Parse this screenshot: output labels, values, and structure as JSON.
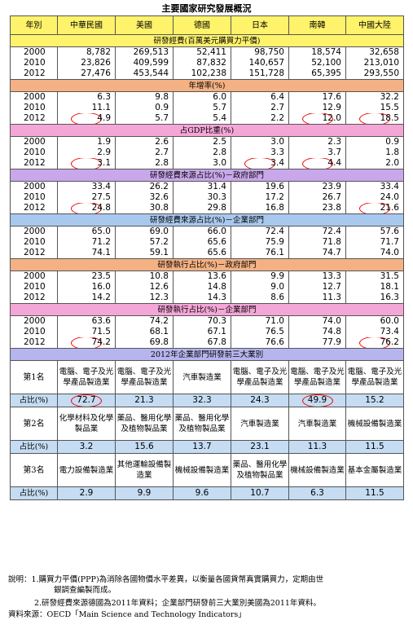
{
  "title": "主要國家研究發展概況",
  "headers": [
    "年別",
    "中華民國",
    "美國",
    "德國",
    "日本",
    "南韓",
    "中國大陸"
  ],
  "sections": [
    {
      "label": "研發經費(百萬美元購買力平價)",
      "color": "yellow",
      "rows": [
        {
          "year": "2000",
          "values": [
            "8,782",
            "269,513",
            "52,411",
            "98,750",
            "18,574",
            "32,658"
          ]
        },
        {
          "year": "2010",
          "values": [
            "23,826",
            "409,599",
            "87,832",
            "140,657",
            "52,100",
            "213,010"
          ]
        },
        {
          "year": "2012",
          "values": [
            "27,476",
            "453,544",
            "102,238",
            "151,728",
            "65,395",
            "293,550"
          ]
        }
      ]
    },
    {
      "label": "年增率(%)",
      "color": "orange",
      "rows": [
        {
          "year": "2000",
          "values": [
            "6.3",
            "9.8",
            "6.0",
            "6.4",
            "17.6",
            "32.2"
          ]
        },
        {
          "year": "2010",
          "values": [
            "11.1",
            "0.9",
            "5.7",
            "2.7",
            "12.9",
            "15.5"
          ]
        },
        {
          "year": "2012",
          "values": [
            "4.9",
            "5.7",
            "5.4",
            "2.2",
            "12.0",
            "18.5"
          ]
        }
      ]
    },
    {
      "label": "占GDP比重(%)",
      "color": "pink",
      "rows": [
        {
          "year": "2000",
          "values": [
            "1.9",
            "2.6",
            "2.5",
            "3.0",
            "2.3",
            "0.9"
          ]
        },
        {
          "year": "2010",
          "values": [
            "2.9",
            "2.7",
            "2.8",
            "3.3",
            "3.7",
            "1.8"
          ]
        },
        {
          "year": "2012",
          "values": [
            "3.1",
            "2.8",
            "3.0",
            "3.4",
            "4.4",
            "2.0"
          ]
        }
      ]
    },
    {
      "label": "研發經費來源占比(%)－政府部門",
      "color": "purple",
      "rows": [
        {
          "year": "2000",
          "values": [
            "33.4",
            "26.2",
            "31.4",
            "19.6",
            "23.9",
            "33.4"
          ]
        },
        {
          "year": "2010",
          "values": [
            "27.5",
            "32.6",
            "30.3",
            "17.2",
            "26.7",
            "24.0"
          ]
        },
        {
          "year": "2012",
          "values": [
            "24.8",
            "30.8",
            "29.8",
            "16.8",
            "23.8",
            "21.6"
          ]
        }
      ]
    },
    {
      "label": "研發經費來源占比(%)－企業部門",
      "color": "blue",
      "rows": [
        {
          "year": "2000",
          "values": [
            "65.0",
            "69.0",
            "66.0",
            "72.4",
            "72.4",
            "57.6"
          ]
        },
        {
          "year": "2010",
          "values": [
            "71.2",
            "57.2",
            "65.6",
            "75.9",
            "71.8",
            "71.7"
          ]
        },
        {
          "year": "2012",
          "values": [
            "74.1",
            "59.1",
            "65.6",
            "76.1",
            "74.7",
            "74.0"
          ]
        }
      ]
    },
    {
      "label": "研發執行占比(%)－政府部門",
      "color": "orange",
      "rows": [
        {
          "year": "2000",
          "values": [
            "23.5",
            "10.8",
            "13.6",
            "9.9",
            "13.3",
            "31.5"
          ]
        },
        {
          "year": "2010",
          "values": [
            "16.0",
            "12.6",
            "14.8",
            "9.0",
            "12.7",
            "18.1"
          ]
        },
        {
          "year": "2012",
          "values": [
            "14.2",
            "12.3",
            "14.3",
            "8.6",
            "11.3",
            "16.3"
          ]
        }
      ]
    },
    {
      "label": "研發執行占比(%)－企業部門",
      "color": "pink",
      "rows": [
        {
          "year": "2000",
          "values": [
            "63.6",
            "74.2",
            "70.3",
            "71.0",
            "74.0",
            "60.0"
          ]
        },
        {
          "year": "2010",
          "values": [
            "71.5",
            "68.1",
            "67.1",
            "76.5",
            "74.8",
            "73.4"
          ]
        },
        {
          "year": "2012",
          "values": [
            "74.2",
            "69.8",
            "67.8",
            "76.6",
            "77.9",
            "76.2"
          ]
        }
      ]
    }
  ],
  "industry": {
    "label": "2012年企業部門研發前三大業別",
    "ranks": [
      {
        "rank": "第1名",
        "industries": [
          "電腦、電子及光學產品製造業",
          "電腦、電子及光學產品製造業",
          "汽車製造業",
          "電腦、電子及光學產品製造業",
          "電腦、電子及光學產品製造業",
          "電腦、電子及光學產品製造業"
        ],
        "ratio_label": "占比(%)",
        "ratios": [
          "72.7",
          "21.3",
          "32.3",
          "24.3",
          "49.9",
          "15.2"
        ]
      },
      {
        "rank": "第2名",
        "industries": [
          "化學材料及化學製品業",
          "藥品、醫用化學及植物製品業",
          "藥品、醫用化學及植物製品業",
          "汽車製造業",
          "汽車製造業",
          "機械設備製造業"
        ],
        "ratio_label": "占比(%)",
        "ratios": [
          "3.2",
          "15.6",
          "13.7",
          "23.1",
          "11.3",
          "11.5"
        ]
      },
      {
        "rank": "第3名",
        "industries": [
          "電力設備製造業",
          "其他運輸設備製造業",
          "機械設備製造業",
          "藥品、醫用化學及植物製品業",
          "機械設備製造業",
          "基本金屬製造業"
        ],
        "ratio_label": "占比(%)",
        "ratios": [
          "2.9",
          "9.9",
          "9.6",
          "10.7",
          "6.3",
          "11.5"
        ]
      }
    ]
  },
  "notes": {
    "line1": "說明：1.購買力平價(PPP)為消除各國物價水平差異，以衡量各國貨幣真實購買力，定期由世",
    "line1b": "銀調查編製而成。",
    "line2": "2.研發經費來源德國為2011年資料；企業部門研發前三大業別美國為2011年資料。",
    "source": "資料來源：OECD「Main Science and Technology Indicators」"
  },
  "colors": {
    "yellow": "#fff36b",
    "orange": "#f4b183",
    "pink": "#f4a6d7",
    "purple": "#c9a7eb",
    "blue": "#a9c8ee",
    "highlight_ring": "#e00000"
  }
}
